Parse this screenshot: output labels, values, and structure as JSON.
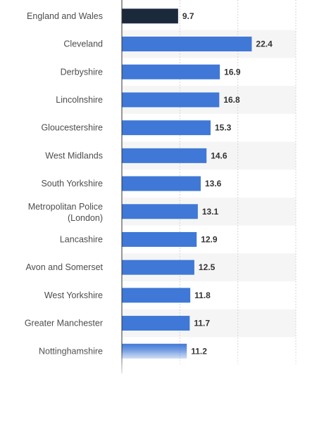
{
  "chart_data": {
    "type": "bar",
    "orientation": "horizontal",
    "categories": [
      "England and Wales",
      "Cleveland",
      "Derbyshire",
      "Lincolnshire",
      "Gloucestershire",
      "West Midlands",
      "South Yorkshire",
      "Metropolitan Police (London)",
      "Lancashire",
      "Avon and Somerset",
      "West Yorkshire",
      "Greater Manchester",
      "Nottinghamshire"
    ],
    "values": [
      9.7,
      22.4,
      16.9,
      16.8,
      15.3,
      14.6,
      13.6,
      13.1,
      12.9,
      12.5,
      11.8,
      11.7,
      11.2
    ],
    "value_labels": [
      "9.7",
      "22.4",
      "16.9",
      "16.8",
      "15.3",
      "14.6",
      "13.6",
      "13.1",
      "12.9",
      "12.5",
      "11.8",
      "11.7",
      "11.2"
    ],
    "highlight_index": 0,
    "xlim": [
      0,
      30
    ],
    "grid": true,
    "colors": {
      "highlight": "#1b2a3b",
      "bar": "#3f78d6",
      "band": "#f5f5f5"
    }
  }
}
